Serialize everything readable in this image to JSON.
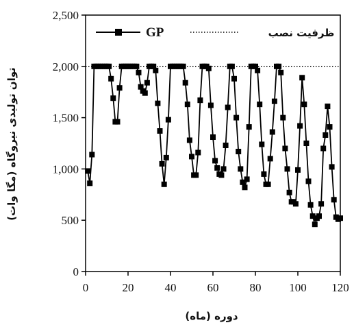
{
  "chart_data": {
    "type": "line",
    "xlabel": "دوره (ماه)",
    "ylabel": "توان تولیدی نیروگاه (مگا وات)",
    "xlim": [
      0,
      120
    ],
    "ylim": [
      0,
      2500
    ],
    "x_ticks": [
      "0",
      "20",
      "40",
      "60",
      "80",
      "100",
      "120"
    ],
    "y_ticks": [
      "0",
      "500",
      "1,000",
      "1,500",
      "2,000",
      "2,500"
    ],
    "x_tick_values": [
      0,
      20,
      40,
      60,
      80,
      100,
      120
    ],
    "y_tick_values": [
      0,
      500,
      1000,
      1500,
      2000,
      2500
    ],
    "legend_position": "top",
    "series": [
      {
        "name": "GP",
        "color": "#000000",
        "marker": "square",
        "x": [
          1,
          2,
          3,
          4,
          5,
          6,
          7,
          8,
          9,
          10,
          11,
          12,
          13,
          14,
          15,
          16,
          17,
          18,
          19,
          20,
          21,
          22,
          23,
          24,
          25,
          26,
          27,
          28,
          29,
          30,
          31,
          32,
          33,
          34,
          35,
          36,
          37,
          38,
          39,
          40,
          41,
          42,
          43,
          44,
          45,
          46,
          47,
          48,
          49,
          50,
          51,
          52,
          53,
          54,
          55,
          56,
          57,
          58,
          59,
          60,
          61,
          62,
          63,
          64,
          65,
          66,
          67,
          68,
          69,
          70,
          71,
          72,
          73,
          74,
          75,
          76,
          77,
          78,
          79,
          80,
          81,
          82,
          83,
          84,
          85,
          86,
          87,
          88,
          89,
          90,
          91,
          92,
          93,
          94,
          95,
          96,
          97,
          98,
          99,
          100,
          101,
          102,
          103,
          104,
          105,
          106,
          107,
          108,
          109,
          110,
          111,
          112,
          113,
          114,
          115,
          116,
          117,
          118,
          119,
          120
        ],
        "y": [
          980,
          860,
          1140,
          2000,
          2000,
          2000,
          2000,
          2000,
          2000,
          2000,
          2000,
          1880,
          1690,
          1460,
          1460,
          1790,
          2000,
          2000,
          2000,
          2000,
          2000,
          2000,
          2000,
          2000,
          1940,
          1800,
          1760,
          1740,
          1840,
          2000,
          2000,
          2000,
          1960,
          1640,
          1370,
          1050,
          850,
          1110,
          1480,
          2000,
          2000,
          2000,
          2000,
          2000,
          2000,
          2000,
          1840,
          1630,
          1280,
          1120,
          940,
          940,
          1160,
          1670,
          2000,
          2000,
          2000,
          1980,
          1620,
          1310,
          1080,
          1010,
          950,
          940,
          1000,
          1230,
          1600,
          2000,
          2000,
          1880,
          1500,
          1170,
          1000,
          870,
          820,
          900,
          1410,
          2000,
          2000,
          2000,
          1960,
          1630,
          1240,
          950,
          850,
          850,
          1100,
          1360,
          1660,
          2000,
          2000,
          1940,
          1500,
          1200,
          1000,
          770,
          680,
          680,
          660,
          990,
          1420,
          1890,
          1630,
          1250,
          880,
          650,
          540,
          460,
          520,
          540,
          660,
          1200,
          1330,
          1610,
          1410,
          1020,
          700,
          530,
          510,
          520
        ]
      },
      {
        "name": "ظرفیت نصب",
        "color": "#000000",
        "style": "dotted",
        "constant": 2000
      }
    ]
  }
}
